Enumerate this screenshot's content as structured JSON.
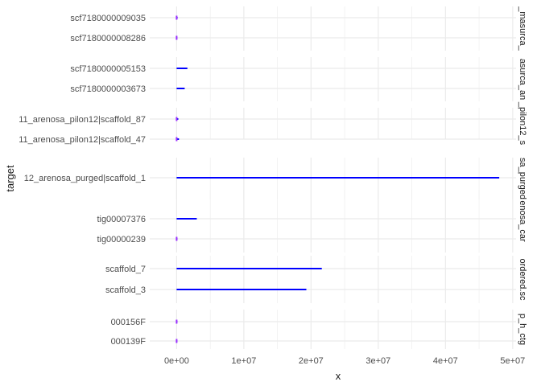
{
  "chart_data": {
    "type": "bar",
    "orientation": "horizontal-segments",
    "xlabel": "x",
    "ylabel": "target",
    "xlim": [
      -4000000,
      50500000
    ],
    "xticks": [
      0,
      10000000,
      20000000,
      30000000,
      40000000,
      50000000
    ],
    "xtick_labels": [
      "0e+00",
      "1e+07",
      "2e+07",
      "3e+07",
      "4e+07",
      "5e+07"
    ],
    "grid": true,
    "legend": "none",
    "colors": {
      "segment": "#0000ff",
      "marker": "#9b30ff",
      "grid": "#ebebeb",
      "text": "#4d4d4d",
      "title": "#1a1a1a"
    },
    "panels": [
      {
        "strip": "_masurca_",
        "rows": [
          {
            "target": "scf7180000009035",
            "end": 150000,
            "marker": true
          },
          {
            "target": "scf7180000008286",
            "end": 100000,
            "marker": true
          }
        ]
      },
      {
        "strip": "asurca_an",
        "rows": [
          {
            "target": "scf7180000005153",
            "end": 1600000,
            "marker": false
          },
          {
            "target": "scf7180000003673",
            "end": 1200000,
            "marker": false
          }
        ]
      },
      {
        "strip": "_pilon12_s",
        "rows": [
          {
            "target": "11_arenosa_pilon12|scaffold_87",
            "end": 250000,
            "marker": true
          },
          {
            "target": "11_arenosa_pilon12|scaffold_47",
            "end": 350000,
            "marker": true
          }
        ]
      },
      {
        "strip": "sa_purged",
        "rows": [
          {
            "target": "12_arenosa_purged|scaffold_1",
            "end": 48000000,
            "marker": false
          }
        ]
      },
      {
        "strip": "enosa_car",
        "rows": [
          {
            "target": "tig00007376",
            "end": 3000000,
            "marker": false
          },
          {
            "target": "tig00000239",
            "end": 120000,
            "marker": true
          }
        ]
      },
      {
        "strip": "ordered.sc",
        "rows": [
          {
            "target": "scaffold_7",
            "end": 21600000,
            "marker": false
          },
          {
            "target": "scaffold_3",
            "end": 19300000,
            "marker": false
          }
        ]
      },
      {
        "strip": "p_h_ctg",
        "rows": [
          {
            "target": "000156F",
            "end": 120000,
            "marker": true
          },
          {
            "target": "000139F",
            "end": 100000,
            "marker": true
          }
        ]
      }
    ]
  }
}
